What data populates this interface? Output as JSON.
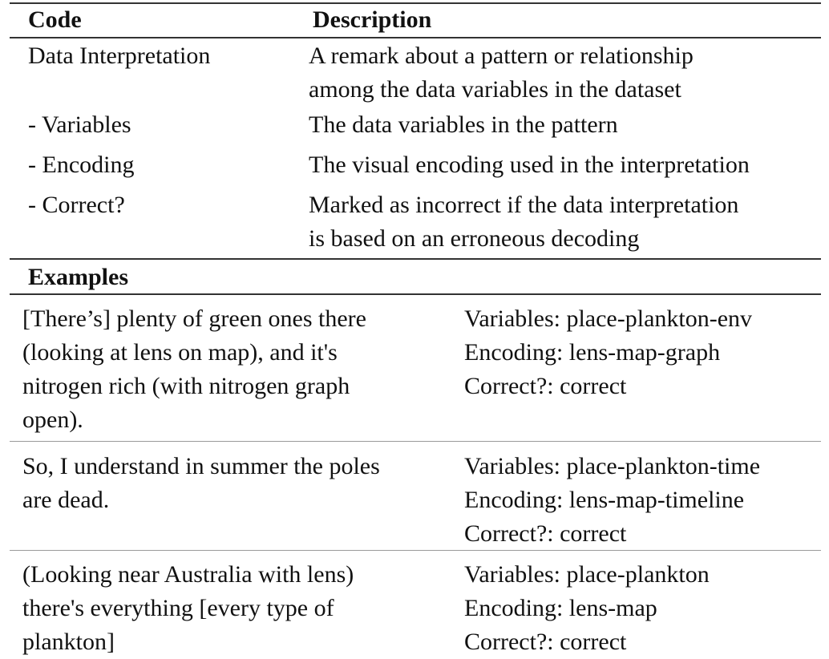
{
  "header": {
    "code_label": "Code",
    "description_label": "Description"
  },
  "codes": [
    {
      "code": "Data Interpretation",
      "description": [
        "A remark about a pattern or relationship",
        "among the data variables in the dataset"
      ]
    },
    {
      "code": "-  Variables",
      "description": [
        "The data variables in the pattern"
      ]
    },
    {
      "code": "-  Encoding",
      "description": [
        "The visual encoding used in the interpretation"
      ]
    },
    {
      "code": "-  Correct?",
      "description": [
        "Marked as incorrect if the data interpretation",
        "is based on an erroneous decoding"
      ]
    }
  ],
  "examples_label": "Examples",
  "examples": [
    {
      "quote": [
        "[There’s] plenty of green ones there",
        "(looking at lens on map), and it's",
        "nitrogen rich (with nitrogen graph",
        "open)."
      ],
      "variables": "Variables: place-plankton-env",
      "encoding": "Encoding: lens-map-graph",
      "correct": "Correct?: correct"
    },
    {
      "quote": [
        "So, I understand in summer the poles",
        "are dead."
      ],
      "variables": "Variables: place-plankton-time",
      "encoding": "Encoding: lens-map-timeline",
      "correct": "Correct?: correct"
    },
    {
      "quote": [
        "(Looking near Australia with lens)",
        "there's everything [every type of",
        "plankton]"
      ],
      "variables": "Variables: place-plankton",
      "encoding": "Encoding: lens-map",
      "correct": "Correct?: correct"
    }
  ]
}
